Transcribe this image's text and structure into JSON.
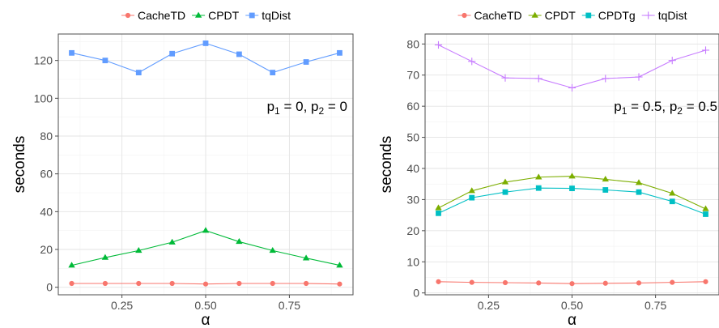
{
  "chart_data": [
    {
      "type": "line",
      "title": "",
      "xlabel": "α",
      "ylabel": "seconds",
      "annotation": {
        "parts": [
          {
            "t": "p",
            "sub": false
          },
          {
            "t": "1",
            "sub": true
          },
          {
            "t": " = 0, p",
            "sub": false
          },
          {
            "t": "2",
            "sub": true
          },
          {
            "t": " = 0",
            "sub": false
          }
        ]
      },
      "xlim": [
        0.06,
        0.94
      ],
      "ylim": [
        -4,
        134
      ],
      "xticks": [
        0.25,
        0.5,
        0.75
      ],
      "xtick_labels": [
        "0.25",
        "0.50",
        "0.75"
      ],
      "yticks": [
        0,
        20,
        40,
        60,
        80,
        100,
        120
      ],
      "ytick_labels": [
        "0",
        "20",
        "40",
        "60",
        "80",
        "100",
        "120"
      ],
      "grid": true,
      "legend_position": "top",
      "x": [
        0.1,
        0.2,
        0.3,
        0.4,
        0.5,
        0.6,
        0.7,
        0.8,
        0.9
      ],
      "series": [
        {
          "name": "CacheTD",
          "color": "#F8766D",
          "marker": "circle",
          "values": [
            2.0,
            2.0,
            2.0,
            2.0,
            1.7,
            2.0,
            2.0,
            2.0,
            1.7
          ]
        },
        {
          "name": "CPDT",
          "color": "#00BA38",
          "marker": "triangle",
          "values": [
            11.6,
            15.7,
            19.4,
            23.8,
            30.0,
            24.1,
            19.4,
            15.4,
            11.6
          ]
        },
        {
          "name": "tqDist",
          "color": "#619CFF",
          "marker": "square",
          "values": [
            124.0,
            120.0,
            113.6,
            123.6,
            129.1,
            123.3,
            113.6,
            119.2,
            124.0
          ]
        }
      ]
    },
    {
      "type": "line",
      "title": "",
      "xlabel": "α",
      "ylabel": "seconds",
      "annotation": {
        "parts": [
          {
            "t": "p",
            "sub": false
          },
          {
            "t": "1",
            "sub": true
          },
          {
            "t": " = 0.5, p",
            "sub": false
          },
          {
            "t": "2",
            "sub": true
          },
          {
            "t": " = 0.5",
            "sub": false
          }
        ]
      },
      "xlim": [
        0.06,
        0.94
      ],
      "ylim": [
        -0.6,
        83.2
      ],
      "xticks": [
        0.25,
        0.5,
        0.75
      ],
      "xtick_labels": [
        "0.25",
        "0.50",
        "0.75"
      ],
      "yticks": [
        0,
        10,
        20,
        30,
        40,
        50,
        60,
        70,
        80
      ],
      "ytick_labels": [
        "0",
        "10",
        "20",
        "30",
        "40",
        "50",
        "60",
        "70",
        "80"
      ],
      "grid": true,
      "legend_position": "top",
      "x": [
        0.1,
        0.2,
        0.3,
        0.4,
        0.5,
        0.6,
        0.7,
        0.8,
        0.9
      ],
      "series": [
        {
          "name": "CacheTD",
          "color": "#F8766D",
          "marker": "circle",
          "values": [
            3.6,
            3.4,
            3.3,
            3.2,
            3.0,
            3.1,
            3.2,
            3.4,
            3.6
          ]
        },
        {
          "name": "CPDT",
          "color": "#7CAE00",
          "marker": "triangle",
          "values": [
            27.3,
            32.8,
            35.6,
            37.2,
            37.5,
            36.5,
            35.4,
            32.0,
            27.0
          ]
        },
        {
          "name": "CPDTg",
          "color": "#00BFC4",
          "marker": "square",
          "values": [
            25.6,
            30.6,
            32.4,
            33.7,
            33.6,
            33.1,
            32.4,
            29.4,
            25.3
          ]
        },
        {
          "name": "tqDist",
          "color": "#C77CFF",
          "marker": "plus",
          "values": [
            79.7,
            74.4,
            69.1,
            68.9,
            65.9,
            68.9,
            69.4,
            74.7,
            78.0
          ]
        }
      ]
    }
  ]
}
